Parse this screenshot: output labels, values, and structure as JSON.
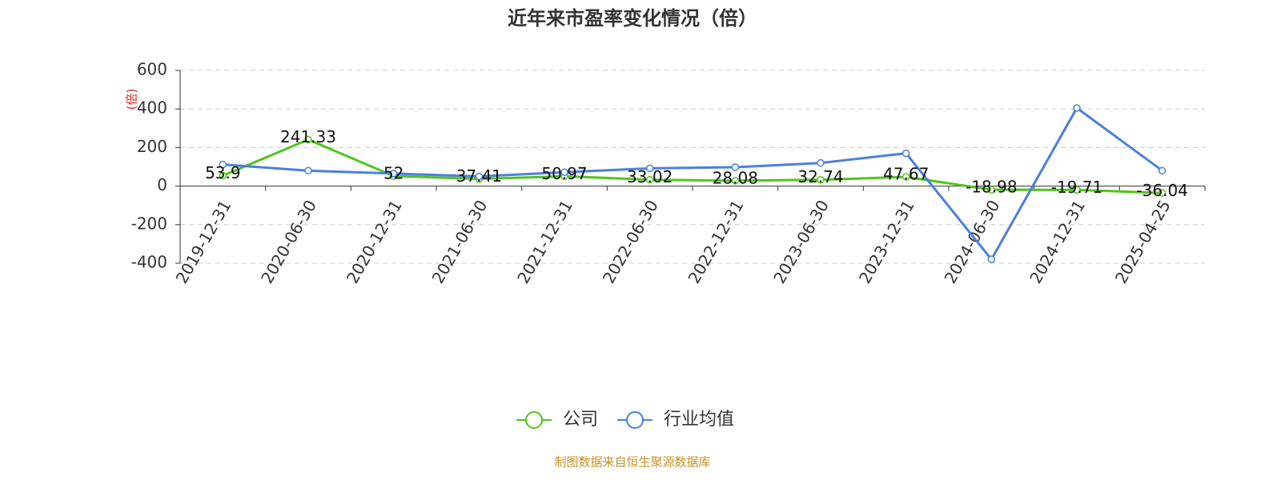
{
  "chart_data": {
    "type": "line",
    "title": "近年来市盈率变化情况（倍）",
    "y_label": "(倍)",
    "source": "制图数据来自恒生聚源数据库",
    "categories": [
      "2019-12-31",
      "2020-06-30",
      "2020-12-31",
      "2021-06-30",
      "2021-12-31",
      "2022-06-30",
      "2022-12-31",
      "2023-06-30",
      "2023-12-31",
      "2024-06-30",
      "2024-12-31",
      "2025-04-25"
    ],
    "series": [
      {
        "name": "公司",
        "color": "#52c41a",
        "values": [
          53.9,
          241.33,
          52,
          37.41,
          50.97,
          33.02,
          28.08,
          32.74,
          47.67,
          -18.98,
          -19.71,
          -36.04
        ],
        "show_labels": true
      },
      {
        "name": "行业均值",
        "color": "#4a7fe0",
        "values": [
          112,
          80,
          65,
          50,
          72,
          92,
          98,
          120,
          170,
          -380,
          405,
          80
        ],
        "show_labels": false
      }
    ],
    "ylim": [
      -400,
      600
    ],
    "yticks": [
      -400,
      -200,
      0,
      200,
      400,
      600
    ],
    "grid": true
  }
}
